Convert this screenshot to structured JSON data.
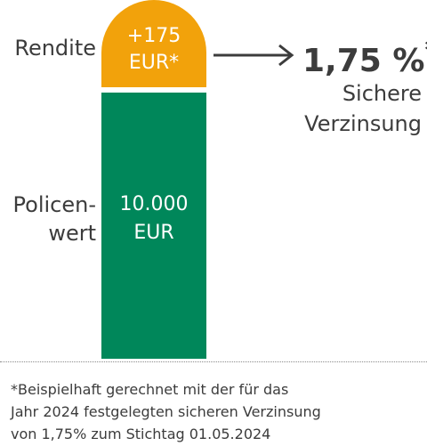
{
  "labels": {
    "rendite": "Rendite",
    "police_line1": "Policen-",
    "police_line2": "wert"
  },
  "rendite_block": {
    "line1": "+175",
    "line2": "EUR*",
    "color": "#f2a20b"
  },
  "policenwert_block": {
    "line1": "10.000",
    "line2": "EUR",
    "color": "#00875a"
  },
  "rate": {
    "value": "1,75 %",
    "marker": "*",
    "desc_line1": "Sichere",
    "desc_line2": "Verzinsung"
  },
  "footnote": {
    "line1": "*Beispielhaft gerechnet mit der für das",
    "line2": "Jahr 2024 festgelegten sicheren Verzinsung",
    "line3": "von 1,75% zum Stichtag 01.05.2024"
  },
  "icons": {
    "arrow": "arrow-right-icon"
  }
}
